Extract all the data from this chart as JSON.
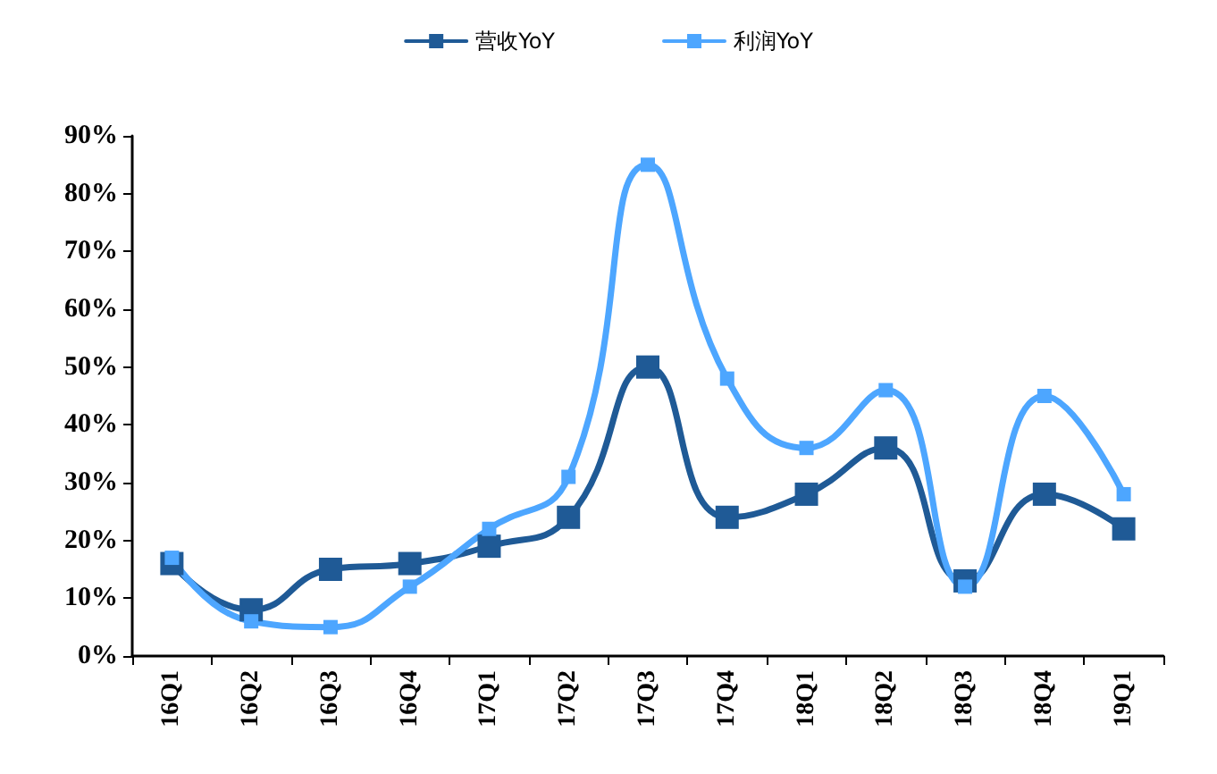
{
  "chart_data": {
    "type": "line",
    "categories": [
      "16Q1",
      "16Q2",
      "16Q3",
      "16Q4",
      "17Q1",
      "17Q2",
      "17Q3",
      "17Q4",
      "18Q1",
      "18Q2",
      "18Q3",
      "18Q4",
      "19Q1"
    ],
    "series": [
      {
        "name": "营收YoY",
        "color": "#1f5a96",
        "values": [
          16,
          8,
          15,
          16,
          19,
          24,
          50,
          24,
          28,
          36,
          13,
          28,
          22
        ]
      },
      {
        "name": "利润YoY",
        "color": "#4da6ff",
        "values": [
          17,
          6,
          5,
          12,
          22,
          31,
          85,
          48,
          36,
          46,
          12,
          45,
          28
        ]
      }
    ],
    "ylim": [
      0,
      90
    ],
    "yticks": [
      {
        "value": 0,
        "label": "0%"
      },
      {
        "value": 10,
        "label": "10%"
      },
      {
        "value": 20,
        "label": "20%"
      },
      {
        "value": 30,
        "label": "30%"
      },
      {
        "value": 40,
        "label": "40%"
      },
      {
        "value": 50,
        "label": "50%"
      },
      {
        "value": 60,
        "label": "60%"
      },
      {
        "value": 70,
        "label": "70%"
      },
      {
        "value": 80,
        "label": "80%"
      },
      {
        "value": 90,
        "label": "90%"
      }
    ],
    "grid": false,
    "legend": "top",
    "marker": "square",
    "line_style": "solid"
  }
}
